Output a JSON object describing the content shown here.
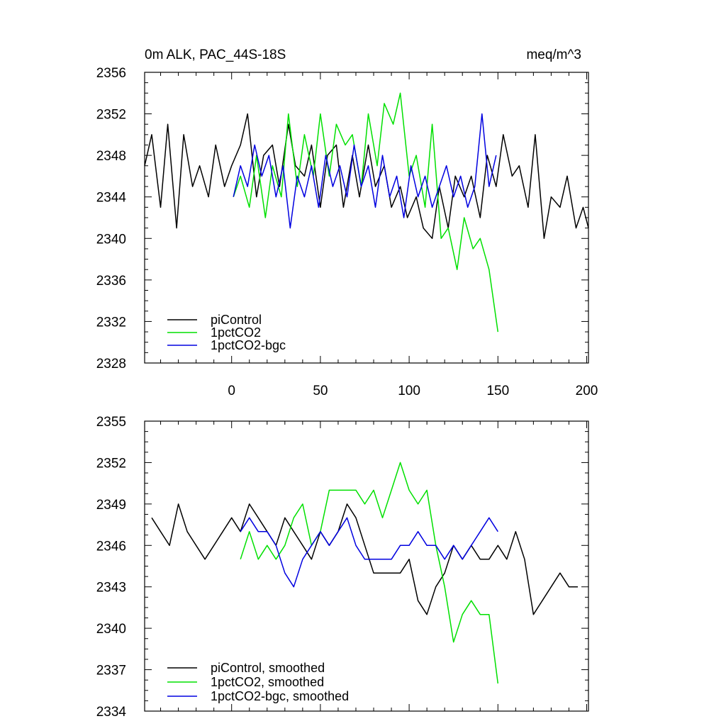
{
  "colors": {
    "piControl": "#000000",
    "1pctCO2": "#00e000",
    "1pctCO2_bgc": "#0000e0"
  },
  "chart_data": [
    {
      "type": "line",
      "title_left": "0m ALK, PAC_44S-18S",
      "title_right": "meq/m^3",
      "xlim": [
        -49,
        201
      ],
      "ylim": [
        2328,
        2356
      ],
      "yticks": [
        2328,
        2332,
        2336,
        2340,
        2344,
        2348,
        2352,
        2356
      ],
      "ytick_labels": [
        "2328",
        "2332",
        "2336",
        "2340",
        "2344",
        "2348",
        "2352",
        "2356"
      ],
      "xticks": [
        0,
        50,
        100,
        150,
        200
      ],
      "xtick_labels": [
        "0",
        "50",
        "100",
        "150",
        "200"
      ],
      "legend": [
        "piControl",
        "1pctCO2",
        "1pctCO2-bgc"
      ],
      "series": [
        {
          "name": "piControl",
          "color_key": "piControl",
          "x": [
            -49,
            -45,
            -40,
            -36,
            -31,
            -27,
            -22,
            -18,
            -13,
            -9,
            -4,
            0,
            5,
            9,
            14,
            18,
            23,
            27,
            32,
            36,
            41,
            45,
            50,
            54,
            59,
            63,
            68,
            72,
            77,
            81,
            86,
            90,
            95,
            99,
            104,
            108,
            113,
            117,
            122,
            126,
            131,
            135,
            140,
            144,
            149,
            153,
            158,
            162,
            167,
            171,
            176,
            180,
            185,
            189,
            194,
            198,
            201
          ],
          "values": [
            2347,
            2350,
            2343,
            2351,
            2341,
            2350,
            2345,
            2347,
            2344,
            2349,
            2345,
            2347,
            2349,
            2352,
            2344,
            2348,
            2349,
            2345,
            2351,
            2347,
            2346,
            2349,
            2343,
            2348,
            2349,
            2343,
            2348,
            2344,
            2349,
            2345,
            2347,
            2343,
            2345,
            2342,
            2344,
            2341,
            2340,
            2345,
            2341,
            2346,
            2344,
            2346,
            2342,
            2348,
            2345,
            2350,
            2346,
            2347,
            2343,
            2350,
            2340,
            2344,
            2343,
            2346,
            2341,
            2343,
            2341
          ]
        },
        {
          "name": "1pctCO2",
          "color_key": "1pctCO2",
          "x": [
            1,
            5,
            10,
            14,
            19,
            23,
            28,
            32,
            37,
            41,
            46,
            50,
            55,
            59,
            64,
            68,
            73,
            77,
            82,
            86,
            91,
            95,
            100,
            104,
            109,
            113,
            118,
            122,
            127,
            131,
            136,
            140,
            145,
            150
          ],
          "values": [
            2344,
            2346,
            2343,
            2348,
            2342,
            2347,
            2344,
            2352,
            2345,
            2350,
            2346,
            2352,
            2346,
            2351,
            2349,
            2350,
            2345,
            2352,
            2347,
            2353,
            2351,
            2354,
            2346,
            2348,
            2343,
            2351,
            2340,
            2341,
            2337,
            2342,
            2339,
            2340,
            2337,
            2331
          ]
        },
        {
          "name": "1pctCO2-bgc",
          "color_key": "1pctCO2_bgc",
          "x": [
            1,
            5,
            9,
            13,
            17,
            21,
            25,
            29,
            33,
            37,
            41,
            45,
            49,
            53,
            57,
            61,
            65,
            69,
            73,
            77,
            81,
            85,
            89,
            93,
            97,
            101,
            105,
            109,
            113,
            117,
            121,
            125,
            129,
            133,
            137,
            141,
            145,
            149
          ],
          "values": [
            2344,
            2347,
            2345,
            2349,
            2346,
            2348,
            2344,
            2347,
            2341,
            2346,
            2344,
            2347,
            2343,
            2348,
            2345,
            2347,
            2344,
            2349,
            2345,
            2347,
            2343,
            2348,
            2344,
            2346,
            2342,
            2347,
            2344,
            2346,
            2343,
            2345,
            2347,
            2344,
            2346,
            2343,
            2345,
            2352,
            2345,
            2348
          ]
        }
      ]
    },
    {
      "type": "line",
      "xlim": [
        -49,
        201
      ],
      "ylim": [
        2334,
        2355
      ],
      "yticks": [
        2334,
        2337,
        2340,
        2343,
        2346,
        2349,
        2352,
        2355
      ],
      "ytick_labels": [
        "2334",
        "2337",
        "2340",
        "2343",
        "2346",
        "2349",
        "2352",
        "2355"
      ],
      "xticks": [
        0,
        50,
        100,
        150,
        200
      ],
      "legend": [
        "piControl, smoothed",
        "1pctCO2, smoothed",
        "1pctCO2-bgc, smoothed"
      ],
      "series": [
        {
          "name": "piControl, smoothed",
          "color_key": "piControl",
          "x": [
            -45,
            -40,
            -35,
            -30,
            -25,
            -20,
            -15,
            -10,
            -5,
            0,
            5,
            10,
            15,
            20,
            25,
            30,
            35,
            40,
            45,
            50,
            55,
            60,
            65,
            70,
            75,
            80,
            85,
            90,
            95,
            100,
            105,
            110,
            115,
            120,
            125,
            130,
            135,
            140,
            145,
            150,
            155,
            160,
            165,
            170,
            175,
            180,
            185,
            190,
            195
          ],
          "values": [
            2348,
            2347,
            2346,
            2349,
            2347,
            2346,
            2345,
            2346,
            2347,
            2348,
            2347,
            2349,
            2348,
            2347,
            2346,
            2348,
            2347,
            2346,
            2345,
            2347,
            2346,
            2347,
            2349,
            2348,
            2346,
            2344,
            2344,
            2344,
            2344,
            2345,
            2342,
            2341,
            2343,
            2344,
            2346,
            2345,
            2346,
            2345,
            2345,
            2346,
            2345,
            2347,
            2345,
            2341,
            2342,
            2343,
            2344,
            2343,
            2343
          ]
        },
        {
          "name": "1pctCO2, smoothed",
          "color_key": "1pctCO2",
          "x": [
            5,
            10,
            15,
            20,
            25,
            30,
            35,
            40,
            45,
            50,
            55,
            60,
            65,
            70,
            75,
            80,
            85,
            90,
            95,
            100,
            105,
            110,
            115,
            120,
            125,
            130,
            135,
            140,
            145,
            150
          ],
          "values": [
            2345,
            2347,
            2345,
            2346,
            2345,
            2346,
            2348,
            2349,
            2346,
            2347,
            2350,
            2350,
            2350,
            2350,
            2349,
            2350,
            2348,
            2350,
            2352,
            2350,
            2349,
            2350,
            2346,
            2343,
            2339,
            2341,
            2342,
            2341,
            2341,
            2336
          ]
        },
        {
          "name": "1pctCO2-bgc, smoothed",
          "color_key": "1pctCO2_bgc",
          "x": [
            5,
            10,
            15,
            20,
            25,
            30,
            35,
            40,
            45,
            50,
            55,
            60,
            65,
            70,
            75,
            80,
            85,
            90,
            95,
            100,
            105,
            110,
            115,
            120,
            125,
            130,
            135,
            140,
            145,
            150
          ],
          "values": [
            2347,
            2348,
            2347,
            2347,
            2346,
            2344,
            2343,
            2345,
            2346,
            2347,
            2346,
            2347,
            2348,
            2346,
            2345,
            2345,
            2345,
            2345,
            2346,
            2346,
            2347,
            2346,
            2346,
            2345,
            2346,
            2345,
            2346,
            2347,
            2348,
            2347
          ]
        }
      ]
    }
  ]
}
